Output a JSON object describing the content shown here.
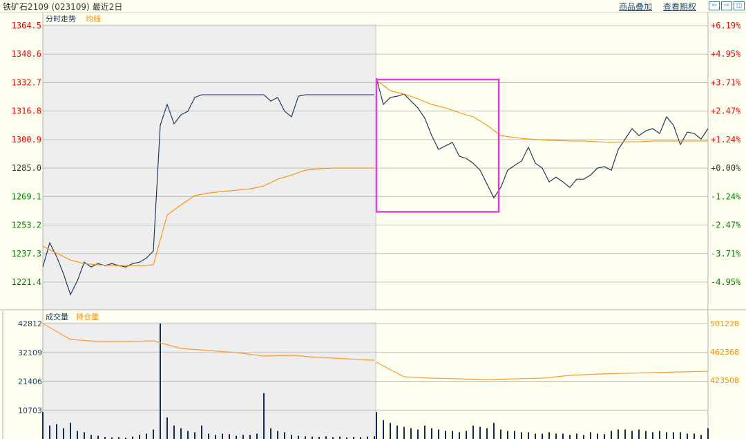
{
  "header": {
    "instrument": "铁矿石2109",
    "code": "(023109)",
    "period": "最近2日",
    "links": [
      "商品叠加",
      "查看期权"
    ],
    "nav_icons": [
      "arrow-left-icon",
      "arrow-right-icon",
      "split-panel-icon"
    ]
  },
  "colors": {
    "up": "#ff0000",
    "down": "#008000",
    "flat": "#333333",
    "price_line": "#1c3a5e",
    "avg_line": "#ff8c00",
    "highlight_box": "#e040e0",
    "volume": "#0f2c52",
    "open_interest": "#ff9933"
  },
  "chart_data": [
    {
      "type": "line",
      "legend": [
        "分时走势",
        "均线"
      ],
      "y_ticks": [
        "1364.5",
        "1348.6",
        "1332.7",
        "1316.8",
        "1300.9",
        "1285.0",
        "1269.1",
        "1253.2",
        "1237.3",
        "1221.4"
      ],
      "pct_ticks": [
        "+6.19%",
        "+4.95%",
        "+3.71%",
        "+2.47%",
        "+1.24%",
        "+0.00%",
        "-1.24%",
        "-2.47%",
        "-3.71%",
        "-4.95%"
      ],
      "ylim": [
        1221.4,
        1364.5
      ],
      "reference_price": 1285.0,
      "grid": true,
      "sessions": 2,
      "series": [
        {
          "key": "price",
          "name": "分时走势",
          "days": [
            [
              1229.8,
              1243.3,
              1235.6,
              1225.9,
              1214.4,
              1222.1,
              1232.5,
              1229.8,
              1231.7,
              1230.6,
              1231.7,
              1230.6,
              1229.8,
              1231.7,
              1232.5,
              1234.8,
              1238.7,
              1308.9,
              1320.5,
              1309.7,
              1314.7,
              1316.7,
              1324.4,
              1325.9,
              1325.9,
              1325.9,
              1325.9,
              1325.9,
              1325.9,
              1325.9,
              1325.9,
              1325.9,
              1325.9,
              1322.4,
              1324.4,
              1316.7,
              1313.6,
              1325.1,
              1325.9,
              1325.9,
              1325.9,
              1325.9,
              1325.9,
              1325.9,
              1325.9,
              1325.9,
              1325.9,
              1325.9,
              1325.9
            ],
            [
              1335.2,
              1320.5,
              1324.4,
              1325.1,
              1326.3,
              1322.4,
              1318.6,
              1312.8,
              1303.1,
              1295.4,
              1297.4,
              1299.3,
              1291.6,
              1290.4,
              1287.7,
              1283.8,
              1276.1,
              1268.4,
              1274.2,
              1283.8,
              1286.5,
              1288.9,
              1296.6,
              1287.7,
              1285.0,
              1277.3,
              1280.0,
              1277.3,
              1274.2,
              1278.8,
              1278.8,
              1281.1,
              1285.0,
              1285.8,
              1283.8,
              1295.4,
              1301.2,
              1307.0,
              1303.1,
              1305.8,
              1307.0,
              1304.3,
              1313.6,
              1308.9,
              1298.1,
              1305.1,
              1304.3,
              1301.2,
              1307.0
            ]
          ]
        },
        {
          "key": "avg",
          "name": "均线",
          "days": [
            [
              1241.4,
              1237.5,
              1233.7,
              1231.7,
              1231.0,
              1230.6,
              1230.6,
              1230.6,
              1231.0,
              1258.8,
              1264.5,
              1269.6,
              1271.1,
              1271.9,
              1272.6,
              1273.4,
              1275.0,
              1278.8,
              1281.1,
              1283.8,
              1284.6,
              1285.0,
              1285.0,
              1285.0,
              1285.0
            ],
            [
              1334.0,
              1328.2,
              1326.3,
              1323.6,
              1320.5,
              1318.6,
              1315.9,
              1313.6,
              1308.9,
              1303.1,
              1302.0,
              1301.2,
              1300.8,
              1300.4,
              1300.1,
              1300.1,
              1299.7,
              1299.3,
              1299.7,
              1299.7,
              1300.1,
              1300.1,
              1300.1,
              1300.1,
              1300.1
            ]
          ]
        }
      ],
      "highlight": {
        "session": 2,
        "price_range": [
          1260.6,
          1334.4
        ]
      }
    },
    {
      "type": "bar",
      "legend": [
        "成交量",
        "持仓量"
      ],
      "y_ticks": [
        "42812",
        "32109",
        "21406",
        "10703"
      ],
      "oi_ticks": [
        "501228",
        "462368",
        "423508"
      ],
      "ylim": [
        0,
        42812
      ],
      "oi_lim": [
        423508,
        501228
      ],
      "grid": true,
      "volume": [
        [
          10000,
          5000,
          5500,
          4000,
          6000,
          3000,
          2500,
          1500,
          1200,
          800,
          600,
          700,
          500,
          900,
          1500,
          2000,
          3500,
          42812,
          8000,
          5000,
          4000,
          3000,
          2500,
          5000,
          2000,
          1500,
          2000,
          1800,
          1200,
          1500,
          1500,
          2000,
          17000,
          4000,
          3000,
          2500,
          1500,
          1200,
          1000,
          900,
          800,
          1000,
          700,
          900,
          600,
          800,
          700,
          900,
          1000
        ],
        [
          10000,
          7000,
          6000,
          5000,
          4500,
          4000,
          3500,
          5000,
          4000,
          3500,
          3000,
          3000,
          2500,
          3000,
          5000,
          4500,
          4000,
          6000,
          3500,
          3000,
          3000,
          2500,
          2500,
          2000,
          2000,
          2500,
          2000,
          2000,
          1500,
          2000,
          1500,
          2500,
          2000,
          1800,
          3000,
          3500,
          3500,
          3000,
          3500,
          3000,
          2500,
          3000,
          2500,
          2500,
          2500,
          2000,
          2000,
          1500,
          4000
        ]
      ],
      "open_interest": [
        [
          501228,
          479424,
          476580,
          476580,
          477528,
          467100,
          464256,
          461412,
          456672,
          457620,
          454776,
          452880,
          450984
        ],
        [
          448140,
          428232,
          426336,
          425388,
          424440,
          425388,
          426336,
          430128,
          432024,
          432972,
          433920,
          434868,
          435816
        ]
      ]
    }
  ]
}
